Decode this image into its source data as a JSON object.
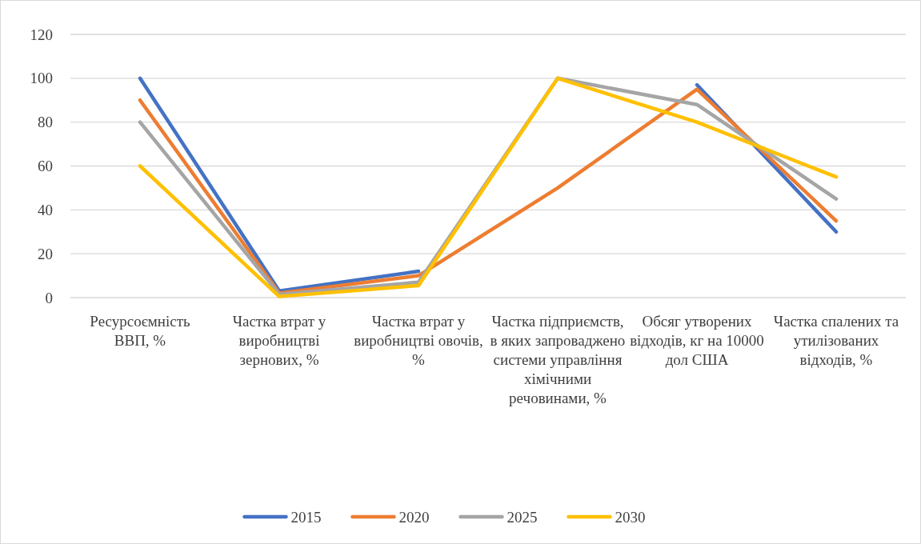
{
  "chart_data": {
    "type": "line",
    "categories": [
      "Ресурсоємність ВВП, %",
      "Частка втрат у виробництві зернових, %",
      "Частка втрат у виробництві овочів, %",
      "Частка підприємств, в яких запроваджено системи управління хімічними речовинами, %",
      "Обсяг утворених відходів, кг на 10000 дол США",
      "Частка спалених та утилізованих відходів, %"
    ],
    "series": [
      {
        "name": "2015",
        "color": "#4472c4",
        "values": [
          100,
          3,
          12,
          null,
          97,
          30
        ]
      },
      {
        "name": "2020",
        "color": "#ed7d31",
        "values": [
          90,
          2,
          10,
          50,
          95,
          35
        ]
      },
      {
        "name": "2025",
        "color": "#a5a5a5",
        "values": [
          80,
          1.5,
          7,
          100,
          88,
          45
        ]
      },
      {
        "name": "2030",
        "color": "#ffc000",
        "values": [
          60,
          0.5,
          5.5,
          100,
          80,
          55
        ]
      }
    ],
    "ylim": [
      0,
      120
    ],
    "yticks": [
      0,
      20,
      40,
      60,
      80,
      100,
      120
    ],
    "grid": "y",
    "legend": "bottom",
    "line_style": "solid",
    "marker": "none"
  }
}
